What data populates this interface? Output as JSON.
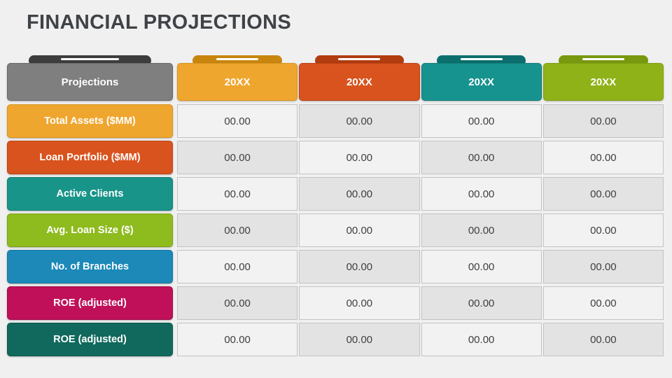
{
  "title": "FINANCIAL PROJECTIONS",
  "colors": {
    "background": "#F0F0F0",
    "title": "#3F4347",
    "cell_light": "#F2F2F2",
    "cell_dark": "#E3E3E3",
    "cell_border": "#C3C3C3",
    "cell_text": "#3F3F3F",
    "header_text": "#FFFFFF",
    "tab_line": "#FFFFFF"
  },
  "table": {
    "header": {
      "label": "Projections",
      "label_bg": "#7F7F7F",
      "label_border": "#696969",
      "label_tab": "#3D3D3D",
      "year_columns": [
        {
          "label": "20XX",
          "bg": "#EFA62E",
          "tab": "#C8860F",
          "border": "#D8941C"
        },
        {
          "label": "20XX",
          "bg": "#D9531E",
          "tab": "#B13C10",
          "border": "#BC4212"
        },
        {
          "label": "20XX",
          "bg": "#17938F",
          "tab": "#0C6F6E",
          "border": "#107D7A"
        },
        {
          "label": "20XX",
          "bg": "#8FB219",
          "tab": "#78990F",
          "border": "#7FA011"
        }
      ]
    },
    "rows": [
      {
        "label": "Total Assets ($MM)",
        "bg": "#EFA62E",
        "border": "#D8941C",
        "values": [
          "00.00",
          "00.00",
          "00.00",
          "00.00"
        ]
      },
      {
        "label": "Loan Portfolio ($MM)",
        "bg": "#D9531E",
        "border": "#BC4212",
        "values": [
          "00.00",
          "00.00",
          "00.00",
          "00.00"
        ]
      },
      {
        "label": "Active Clients",
        "bg": "#189489",
        "border": "#117D74",
        "values": [
          "00.00",
          "00.00",
          "00.00",
          "00.00"
        ]
      },
      {
        "label": "Avg. Loan Size ($)",
        "bg": "#8EBB1E",
        "border": "#7BA414",
        "values": [
          "00.00",
          "00.00",
          "00.00",
          "00.00"
        ]
      },
      {
        "label": "No. of Branches",
        "bg": "#1C89B8",
        "border": "#16749E",
        "values": [
          "00.00",
          "00.00",
          "00.00",
          "00.00"
        ]
      },
      {
        "label": "ROE (adjusted)",
        "bg": "#BF1059",
        "border": "#A00C4A",
        "values": [
          "00.00",
          "00.00",
          "00.00",
          "00.00"
        ]
      },
      {
        "label": "ROE (adjusted)",
        "bg": "#10695C",
        "border": "#0B574C",
        "values": [
          "00.00",
          "00.00",
          "00.00",
          "00.00"
        ]
      }
    ]
  }
}
